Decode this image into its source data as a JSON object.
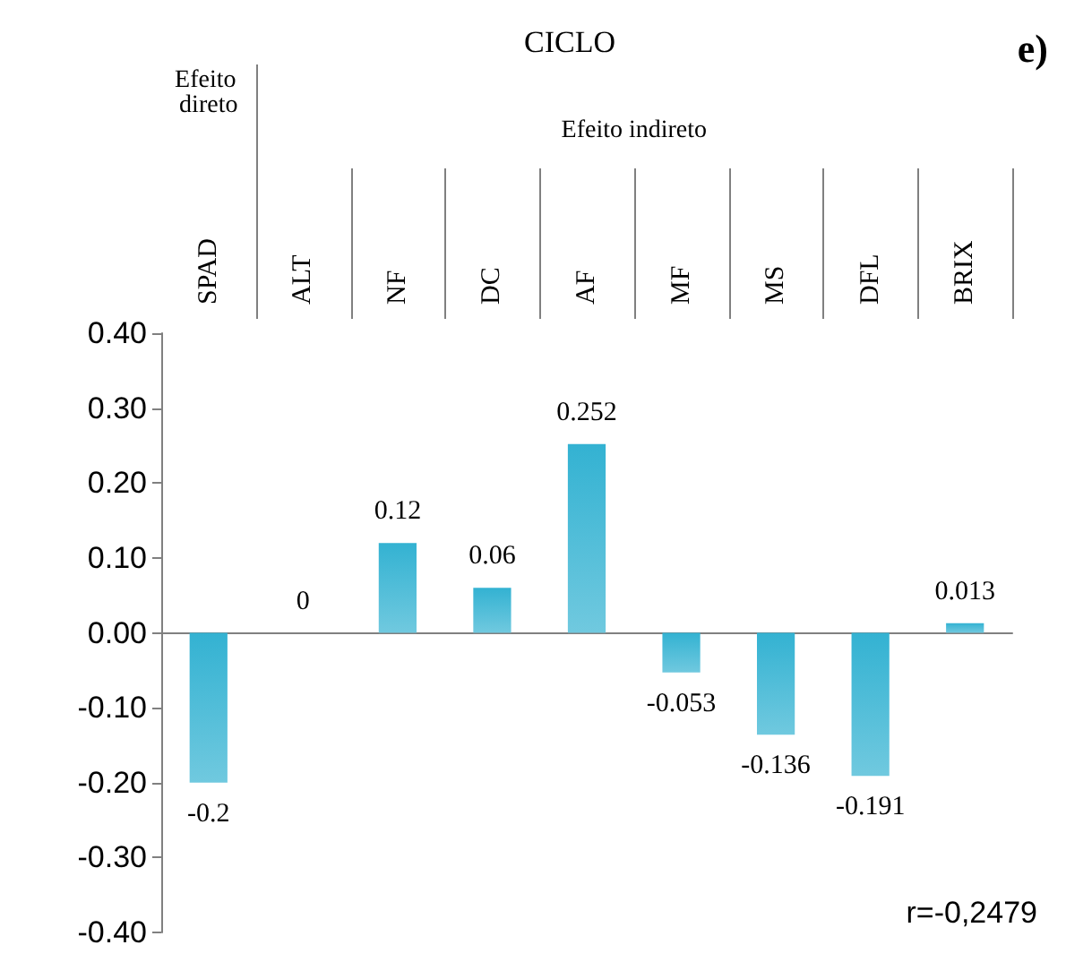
{
  "chart_data": {
    "type": "bar",
    "title": "CICLO",
    "categories": [
      "SPAD",
      "ALT",
      "NF",
      "DC",
      "AF",
      "MF",
      "MS",
      "DFL",
      "BRIX"
    ],
    "values": [
      -0.2,
      0,
      0.12,
      0.06,
      0.252,
      -0.053,
      -0.136,
      -0.191,
      0.013
    ],
    "color": "#33b2d2",
    "ylim": [
      -0.4,
      0.4
    ],
    "yticks": [
      {
        "value": -0.4,
        "label": "-0.40"
      },
      {
        "value": -0.3,
        "label": "-0.30"
      },
      {
        "value": -0.2,
        "label": "-0.20"
      },
      {
        "value": -0.1,
        "label": "-0.10"
      },
      {
        "value": 0,
        "label": "0.00"
      },
      {
        "value": 0.1,
        "label": "0.10"
      },
      {
        "value": 0.2,
        "label": "0.20"
      },
      {
        "value": 0.3,
        "label": "0.30"
      },
      {
        "value": 0.4,
        "label": "0.40"
      }
    ],
    "data_labels": true,
    "annotations": [
      "Efeito direto",
      "Efeito indireto",
      "e)",
      "r=-0,2479"
    ]
  }
}
